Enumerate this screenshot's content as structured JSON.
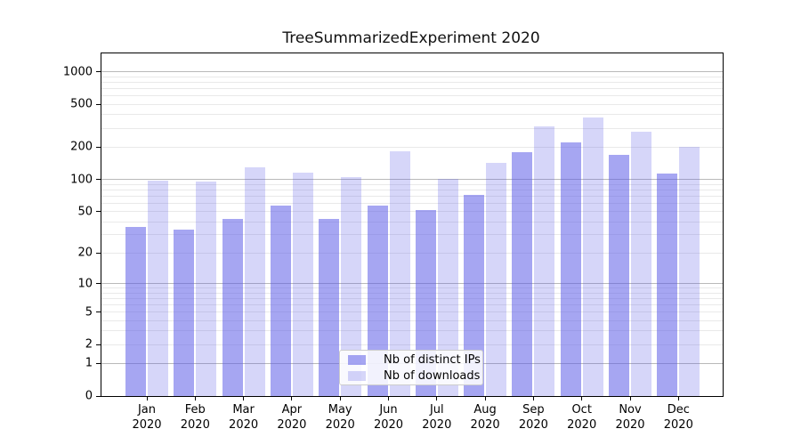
{
  "chart_data": {
    "type": "bar",
    "title": "TreeSummarizedExperiment 2020",
    "categories": [
      "Jan",
      "Feb",
      "Mar",
      "Apr",
      "May",
      "Jun",
      "Jul",
      "Aug",
      "Sep",
      "Oct",
      "Nov",
      "Dec"
    ],
    "x_tick_second_line": "2020",
    "series": [
      {
        "name": "Nb of distinct IPs",
        "values": [
          36,
          34,
          43,
          57,
          43,
          57,
          52,
          72,
          180,
          220,
          170,
          114
        ]
      },
      {
        "name": "Nb of downloads",
        "values": [
          97,
          95,
          131,
          115,
          106,
          183,
          102,
          143,
          315,
          380,
          280,
          200
        ]
      }
    ],
    "xlabel": "",
    "ylabel": "",
    "y_scale": "log10(1+x)",
    "y_ticks": [
      0,
      1,
      2,
      5,
      10,
      20,
      50,
      100,
      200,
      500,
      1000
    ],
    "ylim": [
      0,
      1470
    ],
    "grid": "horizontal major and minor gridlines",
    "legend_position": "inside bottom-center",
    "colors": {
      "ips_fill": "rgba(93,93,232,0.55)",
      "downloads_fill": "rgba(93,93,232,0.25)",
      "ips_solid": "#a7a7f1",
      "downloads_solid": "#d7d7f9",
      "major_grid": "#b9b9b9",
      "minor_grid": "#e9e9e9",
      "axis": "#000000"
    }
  }
}
